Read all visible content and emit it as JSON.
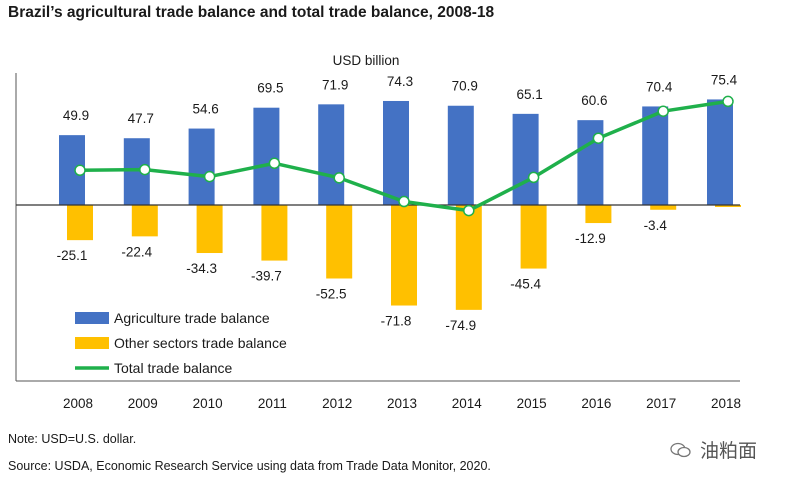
{
  "title": "Brazil’s agricultural trade balance and total trade balance, 2008-18",
  "note": "Note: USD=U.S. dollar.",
  "source": "Source: USDA, Economic Research Service using data from Trade Data Monitor, 2020.",
  "watermark": "油粕面",
  "colors": {
    "agriculture": "#4472C4",
    "other": "#FFC000",
    "total": "#1FB04B",
    "marker": "#ffffff"
  },
  "chart_data": {
    "type": "bar",
    "unit_label": "USD billion",
    "categories": [
      "2008",
      "2009",
      "2010",
      "2011",
      "2012",
      "2013",
      "2014",
      "2015",
      "2016",
      "2017",
      "2018"
    ],
    "series": [
      {
        "name": "Agriculture trade balance",
        "type": "bar",
        "values": [
          49.9,
          47.7,
          54.6,
          69.5,
          71.9,
          74.3,
          70.9,
          65.1,
          60.6,
          70.4,
          75.4
        ]
      },
      {
        "name": "Other sectors trade balance",
        "type": "bar",
        "values": [
          -25.1,
          -22.4,
          -34.3,
          -39.7,
          -52.5,
          -71.8,
          -74.9,
          -45.4,
          -12.9,
          -3.4,
          -1.4
        ]
      },
      {
        "name": "Total trade balance",
        "type": "line",
        "values": [
          24.8,
          25.3,
          20.3,
          29.8,
          19.4,
          2.5,
          -4.0,
          19.7,
          47.7,
          67.0,
          74.0
        ]
      }
    ],
    "data_labels": {
      "agriculture": [
        "49.9",
        "47.7",
        "54.6",
        "69.5",
        "71.9",
        "74.3",
        "70.9",
        "65.1",
        "60.6",
        "70.4",
        "75.4"
      ],
      "other": [
        "-25.1",
        "-22.4",
        "-34.3",
        "-39.7",
        "-52.5",
        "-71.8",
        "-74.9",
        "-45.4",
        "-12.9",
        "-3.4",
        ""
      ]
    },
    "legend": [
      "Agriculture trade balance",
      "Other sectors trade balance",
      "Total trade balance"
    ],
    "legend_position": "bottom-left",
    "grid": false
  }
}
